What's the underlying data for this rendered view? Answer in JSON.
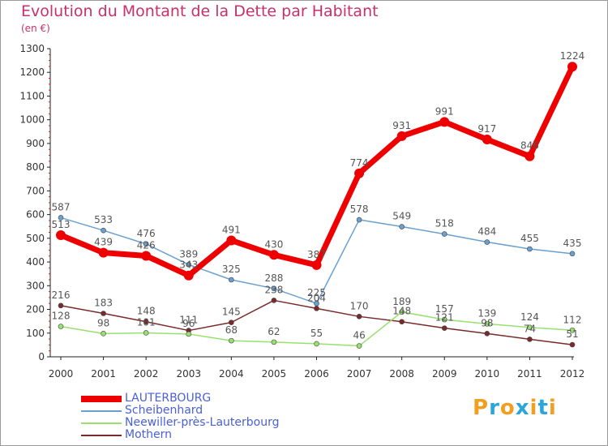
{
  "header": {
    "title": "Evolution du Montant de la Dette par Habitant",
    "subtitle": "(en €)"
  },
  "logo": {
    "letters": [
      "P",
      "r",
      "o",
      "x",
      "i",
      "t",
      "i"
    ],
    "colors": [
      "#f0a020",
      "#2aa7d8",
      "#f0a020",
      "#2aa7d8",
      "#f0a020",
      "#2aa7d8",
      "#f0a020"
    ]
  },
  "chart_data": {
    "type": "line",
    "title": "Evolution du Montant de la Dette par Habitant",
    "ylabel": "(en €)",
    "xlabel": "",
    "x": [
      "2000",
      "2001",
      "2002",
      "2003",
      "2004",
      "2005",
      "2006",
      "2007",
      "2008",
      "2009",
      "2010",
      "2011",
      "2012"
    ],
    "ylim": [
      0,
      1300
    ],
    "yticks": [
      0,
      100,
      200,
      300,
      400,
      500,
      600,
      700,
      800,
      900,
      1000,
      1100,
      1200,
      1300
    ],
    "grid": false,
    "legend": "bottom-left",
    "series": [
      {
        "name": "LAUTERBOURG",
        "color": "#ee0000",
        "width": 7,
        "values": [
          513,
          439,
          426,
          343,
          491,
          430,
          387,
          774,
          931,
          991,
          917,
          846,
          1224
        ],
        "labels": [
          "513",
          "439",
          "426",
          "343",
          "491",
          "430",
          "387",
          "774",
          "931",
          "991",
          "917",
          "846",
          "1224"
        ]
      },
      {
        "name": "Scheibenhard",
        "color": "#6aa0d0",
        "width": 1.5,
        "values": [
          587,
          533,
          476,
          389,
          325,
          288,
          225,
          578,
          549,
          518,
          484,
          455,
          435
        ],
        "labels": [
          "587",
          "533",
          "476",
          "389",
          "325",
          "288",
          "225",
          "578",
          "549",
          "518",
          "484",
          "455",
          "435"
        ]
      },
      {
        "name": "Neewiller-près-Lauterbourg",
        "color": "#99e070",
        "width": 1.5,
        "values": [
          128,
          98,
          101,
          96,
          68,
          62,
          55,
          46,
          189,
          157,
          139,
          124,
          112
        ],
        "labels": [
          "128",
          "98",
          "101",
          "96",
          "68",
          "62",
          "55",
          "46",
          "189",
          "157",
          "139",
          "124",
          "112"
        ]
      },
      {
        "name": "Mothern",
        "color": "#7a2a2a",
        "width": 1.5,
        "values": [
          216,
          183,
          148,
          111,
          145,
          238,
          204,
          170,
          148,
          121,
          98,
          74,
          51
        ],
        "labels": [
          "216",
          "183",
          "148",
          "111",
          "145",
          "238",
          "204",
          "170",
          "148",
          "121",
          "98",
          "74",
          "51"
        ]
      }
    ]
  }
}
